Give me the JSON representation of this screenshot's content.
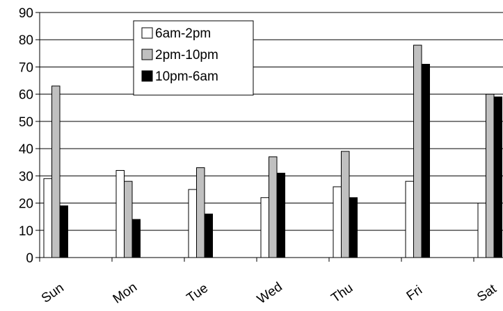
{
  "chart_data": {
    "type": "bar",
    "categories": [
      "Sun",
      "Mon",
      "Tue",
      "Wed",
      "Thu",
      "Fri",
      "Sat"
    ],
    "series": [
      {
        "name": "6am-2pm",
        "color": "#ffffff",
        "values": [
          29,
          32,
          25,
          22,
          26,
          28,
          20
        ]
      },
      {
        "name": "2pm-10pm",
        "color": "#c0c0c0",
        "values": [
          63,
          28,
          33,
          37,
          39,
          78,
          60
        ]
      },
      {
        "name": "10pm-6am",
        "color": "#000000",
        "values": [
          19,
          14,
          16,
          31,
          22,
          71,
          59
        ]
      }
    ],
    "yticks": [
      "0",
      "10",
      "20",
      "30",
      "40",
      "50",
      "60",
      "70",
      "80",
      "90"
    ],
    "ylim": [
      0,
      90
    ],
    "grid": true,
    "legend_position": "top-center",
    "title": "",
    "xlabel": "",
    "ylabel": ""
  }
}
